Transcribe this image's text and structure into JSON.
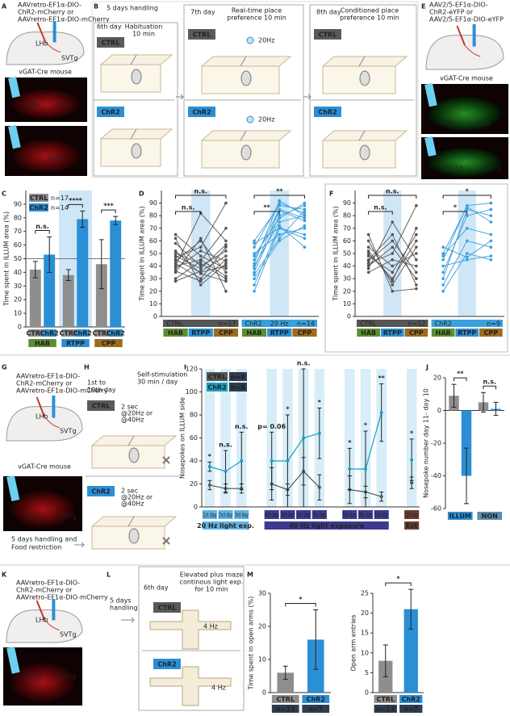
{
  "panel_letters": [
    "A",
    "B",
    "C",
    "D",
    "E",
    "F",
    "G",
    "H",
    "I",
    "J",
    "K",
    "L",
    "M"
  ],
  "schematics": {
    "A": {
      "virus": [
        "AAVretro-EF1α-DIO-",
        "ChR2-mCherry or",
        "AAVretro-EF1α-DIO-mCherry"
      ],
      "brain": [
        "LHb",
        "SVTg"
      ],
      "mouse": "vGAT-Cre mouse",
      "images": [
        "LHb",
        "LHb",
        "SVTg"
      ]
    },
    "B": {
      "handling": "5 days handling",
      "days": [
        "6th day",
        "7th day",
        "8th day"
      ],
      "phases": [
        [
          "Habituation",
          "10 min"
        ],
        [
          "Real-time place",
          "preference 10 min"
        ],
        [
          "Conditioned place",
          "preference 10 min"
        ]
      ],
      "groups": [
        "CTRL",
        "ChR2"
      ],
      "stim": [
        "20Hz",
        "20Hz"
      ]
    },
    "E": {
      "virus": [
        "AAV2/5-EF1α-DIO-",
        "ChR2-eYFP or",
        "AAV2/5-EF1α-DIO-eYFP"
      ],
      "mouse": "vGAT-Cre mouse",
      "images": [
        "LHb",
        "LHb",
        "SVTg",
        "SVTg"
      ]
    },
    "G": {
      "virus": [
        "AAVretro-EF1α-DIO-",
        "ChR2-mCherry or",
        "AAVretro-EF1α-DIO-mCherry"
      ],
      "brain": [
        "LHb",
        "SVTg"
      ],
      "mouse": "vGAT-Cre mouse",
      "images": [
        "SVTg",
        "SVTg"
      ],
      "note": [
        "5 days handling and",
        "Food restriction"
      ]
    },
    "H": {
      "days": [
        "1st to",
        "10th day"
      ],
      "session": [
        "Self-stimulation",
        "30 min / day"
      ],
      "groups": [
        "CTRL",
        "ChR2"
      ],
      "stim": [
        "2 sec",
        "@20Hz or",
        "@40Hz"
      ]
    },
    "K": {
      "virus": [
        "AAVretro-EF1α-DIO-",
        "ChR2-mCherry or",
        "AAVretro-EF1α-DIO-mCherry"
      ],
      "brain": [
        "LHb",
        "SVTg"
      ],
      "images": [
        "SVTg",
        "SVTg"
      ]
    },
    "L": {
      "handling": [
        "5 days",
        "handling"
      ],
      "day": "6th day",
      "task": [
        "Elevated plus maze",
        "continous light exp.",
        "for 10 min"
      ],
      "groups": [
        "CTRL",
        "ChR2"
      ],
      "stim": "4 Hz"
    }
  },
  "chart_data": [
    {
      "type": "bar",
      "ylabel": "Time spent in ILLUM area (%)",
      "ylim": [
        0,
        100
      ],
      "yticks": [
        0,
        10,
        20,
        30,
        40,
        50,
        60,
        70,
        80,
        90
      ],
      "reference_line": 50,
      "groups": [
        "HAB",
        "RTPP",
        "CPP"
      ],
      "group_colors": [
        "#5d8f2e",
        "#2b8fd6",
        "#9c6b1e"
      ],
      "series": [
        {
          "name": "CTRL",
          "n": "n=17",
          "color": "#8e8e8e",
          "values": [
            42,
            38,
            46
          ],
          "errors": [
            6,
            4,
            18
          ]
        },
        {
          "name": "ChR2",
          "n": "n=14",
          "color": "#2b8fd6",
          "values": [
            53,
            79,
            78
          ],
          "errors": [
            13,
            6,
            3
          ]
        }
      ],
      "significance": [
        "n.s.",
        "****",
        "***"
      ]
    },
    {
      "type": "paired-line",
      "ylabel": "Time spent in ILLUM area (%)",
      "ylim": [
        0,
        100
      ],
      "yticks": [
        0,
        10,
        20,
        30,
        40,
        50,
        60,
        70,
        80,
        90
      ],
      "phases": [
        "HAB",
        "RTPP",
        "CPP"
      ],
      "phase_colors": [
        "#5d8f2e",
        "#2b8fd6",
        "#9c6b1e"
      ],
      "series": [
        {
          "name": "CTRL",
          "n": "n=17",
          "color": "#555555",
          "values": [
            [
              35,
              62,
              20
            ],
            [
              40,
              45,
              32
            ],
            [
              48,
              38,
              57
            ],
            [
              45,
              35,
              40
            ],
            [
              38,
              52,
              44
            ],
            [
              42,
              30,
              55
            ],
            [
              52,
              34,
              28
            ],
            [
              30,
              44,
              70
            ],
            [
              44,
              60,
              35
            ],
            [
              58,
              40,
              52
            ],
            [
              65,
              48,
              38
            ],
            [
              36,
              28,
              45
            ],
            [
              47,
              55,
              90
            ],
            [
              40,
              82,
              60
            ],
            [
              50,
              42,
              30
            ],
            [
              28,
              36,
              48
            ],
            [
              62,
              25,
              42
            ]
          ]
        },
        {
          "name": "ChR2",
          "stim": "20 Hz",
          "n": "n=14",
          "color": "#3aa0dc",
          "values": [
            [
              30,
              60,
              72
            ],
            [
              40,
              75,
              80
            ],
            [
              20,
              70,
              65
            ],
            [
              45,
              85,
              78
            ],
            [
              55,
              90,
              82
            ],
            [
              35,
              80,
              88
            ],
            [
              50,
              65,
              70
            ],
            [
              60,
              88,
              85
            ],
            [
              25,
              72,
              55
            ],
            [
              42,
              92,
              80
            ],
            [
              48,
              78,
              90
            ],
            [
              38,
              84,
              76
            ],
            [
              58,
              70,
              62
            ],
            [
              33,
              62,
              84
            ]
          ]
        }
      ],
      "significance": [
        "n.s.",
        "n.s.",
        "**",
        "**"
      ]
    },
    {
      "type": "paired-line",
      "ylabel": "Time spent in ILLUM area (%)",
      "ylim": [
        0,
        100
      ],
      "yticks": [
        0,
        10,
        20,
        30,
        40,
        50,
        60,
        70,
        80,
        90
      ],
      "phases": [
        "HAB",
        "RTPP",
        "CPP"
      ],
      "phase_colors": [
        "#5d8f2e",
        "#2b8fd6",
        "#9c6b1e"
      ],
      "series": [
        {
          "name": "CTRL",
          "n": "n=12",
          "color": "#555555",
          "values": [
            [
              40,
              55,
              30
            ],
            [
              45,
              65,
              25
            ],
            [
              50,
              30,
              60
            ],
            [
              55,
              40,
              50
            ],
            [
              35,
              45,
              40
            ],
            [
              60,
              25,
              55
            ],
            [
              42,
              50,
              88
            ],
            [
              48,
              35,
              65
            ],
            [
              38,
              75,
              45
            ],
            [
              52,
              28,
              70
            ],
            [
              44,
              60,
              35
            ],
            [
              65,
              20,
              22
            ]
          ]
        },
        {
          "name": "ChR2",
          "n": "n=9",
          "color": "#3aa0dc",
          "values": [
            [
              30,
              85,
              80
            ],
            [
              45,
              88,
              90
            ],
            [
              20,
              50,
              45
            ],
            [
              55,
              47,
              60
            ],
            [
              35,
              80,
              85
            ],
            [
              40,
              45,
              48
            ],
            [
              48,
              70,
              65
            ],
            [
              25,
              60,
              55
            ],
            [
              50,
              87,
              75
            ]
          ]
        }
      ],
      "significance": [
        "n.s.",
        "n.s.",
        "*",
        "*"
      ]
    },
    {
      "type": "line",
      "ylabel": "Nosepokes on ILLUM side",
      "ylim": [
        0,
        120
      ],
      "yticks": [
        0,
        20,
        40,
        60,
        80,
        100,
        120
      ],
      "categories": [
        "1st day",
        "2nd day",
        "3rd day",
        "4th day",
        "5th day",
        "6th day",
        "7th day",
        "8th day",
        "9th day",
        "10th day",
        "11th day"
      ],
      "series": [
        {
          "name": "CTRL",
          "n": "n=8",
          "color": "#555555",
          "values": [
            19,
            16,
            16,
            20,
            15,
            31,
            17,
            15,
            13,
            9,
            21
          ],
          "errors": [
            4,
            4,
            4,
            14,
            5,
            12,
            11,
            12,
            5,
            4,
            5
          ]
        },
        {
          "name": "ChR2",
          "n": "n=8",
          "color": "#1aa0c0",
          "values": [
            35,
            31,
            40,
            40,
            40,
            60,
            64,
            33,
            33,
            82,
            41
          ],
          "errors": [
            4,
            18,
            25,
            25,
            40,
            60,
            22,
            18,
            33,
            25,
            18
          ]
        }
      ],
      "periods": [
        {
          "label": "20 Hz light exp.",
          "color": "#5fb3e3"
        },
        {
          "label": "40 Hz light exposure",
          "color": "#3b3b8f"
        },
        {
          "label": "Ext",
          "color": "#6b3a2e"
        }
      ],
      "annotations": [
        {
          "label": "*",
          "color": "#c03030"
        },
        {
          "label": "n.s.",
          "color": "#222222"
        },
        {
          "label": "n.s.",
          "color": "#222222"
        },
        {
          "label": "p= 0.06",
          "color": "#c03030"
        },
        {
          "label": "*",
          "color": "#c03030"
        },
        {
          "label": "n.s.",
          "color": "#222222"
        },
        {
          "label": "*",
          "color": "#c03030"
        },
        {
          "label": "*",
          "color": "#c03030"
        },
        {
          "label": "*",
          "color": "#c03030"
        },
        {
          "label": "**",
          "color": "#c03030"
        },
        {
          "label": "*",
          "color": "#c03030"
        }
      ]
    },
    {
      "type": "bar",
      "ylabel": "Nosepoke number day 11- day 10",
      "ylim": [
        -60,
        20
      ],
      "yticks": [
        -60,
        -40,
        -20,
        0,
        20
      ],
      "groups": [
        "ILLUM",
        "NON"
      ],
      "group_colors": [
        "#2b8fd6",
        "#5a8db0"
      ],
      "series": [
        {
          "color": "#8e8e8e",
          "values": [
            9,
            5
          ],
          "errors": [
            7,
            6
          ]
        },
        {
          "color": "#2b8fd6",
          "values": [
            -40,
            1
          ],
          "errors": [
            17,
            4
          ]
        }
      ],
      "significance": [
        "**",
        "n.s."
      ]
    },
    {
      "type": "bar",
      "ylabel": "Time spent in open arms (%)",
      "ylim": [
        0,
        30
      ],
      "yticks": [
        0,
        10,
        20,
        30
      ],
      "categories": [
        "CTRL",
        "ChR2"
      ],
      "n": [
        "n=13",
        "n=7"
      ],
      "colors": [
        "#8e8e8e",
        "#2b8fd6"
      ],
      "values": [
        6,
        16
      ],
      "errors": [
        2,
        9
      ],
      "significance": "*"
    },
    {
      "type": "bar",
      "ylabel": "Open arm entries",
      "ylim": [
        0,
        25
      ],
      "yticks": [
        0,
        5,
        10,
        15,
        20,
        25
      ],
      "categories": [
        "CTRL",
        "ChR2"
      ],
      "n": [
        "n=13",
        "n=7"
      ],
      "colors": [
        "#8e8e8e",
        "#2b8fd6"
      ],
      "values": [
        8,
        21
      ],
      "errors": [
        4,
        5
      ],
      "significance": "*"
    }
  ]
}
